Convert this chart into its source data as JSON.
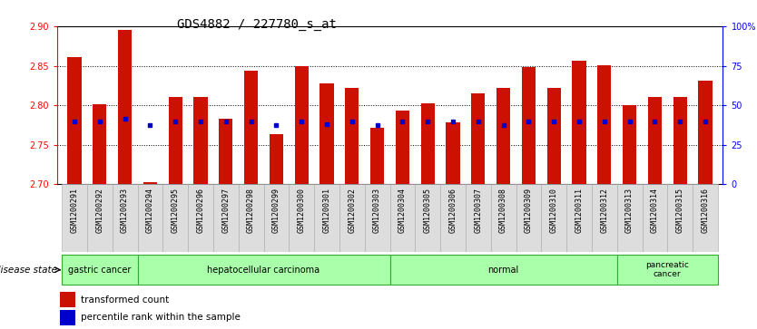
{
  "title": "GDS4882 / 227780_s_at",
  "samples": [
    "GSM1200291",
    "GSM1200292",
    "GSM1200293",
    "GSM1200294",
    "GSM1200295",
    "GSM1200296",
    "GSM1200297",
    "GSM1200298",
    "GSM1200299",
    "GSM1200300",
    "GSM1200301",
    "GSM1200302",
    "GSM1200303",
    "GSM1200304",
    "GSM1200305",
    "GSM1200306",
    "GSM1200307",
    "GSM1200308",
    "GSM1200309",
    "GSM1200310",
    "GSM1200311",
    "GSM1200312",
    "GSM1200313",
    "GSM1200314",
    "GSM1200315",
    "GSM1200316"
  ],
  "bar_values": [
    2.861,
    2.801,
    2.896,
    2.703,
    2.811,
    2.811,
    2.783,
    2.844,
    2.763,
    2.85,
    2.828,
    2.822,
    2.771,
    2.793,
    2.803,
    2.778,
    2.815,
    2.822,
    2.848,
    2.822,
    2.856,
    2.851,
    2.8,
    2.811,
    2.811,
    2.831
  ],
  "dot_values": [
    2.779,
    2.779,
    2.783,
    2.775,
    2.779,
    2.779,
    2.779,
    2.779,
    2.775,
    2.779,
    2.776,
    2.779,
    2.775,
    2.779,
    2.779,
    2.779,
    2.779,
    2.775,
    2.779,
    2.779,
    2.779,
    2.779,
    2.779,
    2.779,
    2.779,
    2.779
  ],
  "ylim_left": [
    2.7,
    2.9
  ],
  "ylim_right": [
    0,
    100
  ],
  "yticks_left": [
    2.7,
    2.75,
    2.8,
    2.85,
    2.9
  ],
  "ytick_labels_right": [
    "0",
    "25",
    "50",
    "75",
    "100%"
  ],
  "bar_color": "#cc1100",
  "dot_color": "#0000cc",
  "bar_bottom": 2.7,
  "disease_groups": [
    {
      "label": "gastric cancer",
      "start": 0,
      "end": 3
    },
    {
      "label": "hepatocellular carcinoma",
      "start": 3,
      "end": 13
    },
    {
      "label": "normal",
      "start": 13,
      "end": 22
    },
    {
      "label": "pancreatic\ncancer",
      "start": 22,
      "end": 26
    }
  ],
  "group_bg": "#aaffaa",
  "group_border": "#33aa33",
  "legend_items": [
    {
      "label": "transformed count",
      "color": "#cc1100"
    },
    {
      "label": "percentile rank within the sample",
      "color": "#0000cc"
    }
  ],
  "bg_color": "#ffffff",
  "title_fontsize": 10,
  "tick_fontsize": 7,
  "xtick_fontsize": 6,
  "label_fontsize": 8
}
